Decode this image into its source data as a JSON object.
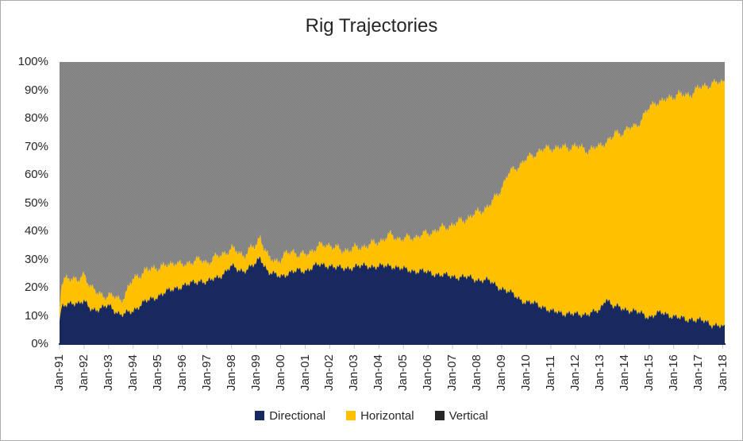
{
  "chart": {
    "title": "Rig Trajectories",
    "y_axis_labels": [
      "100%",
      "90%",
      "80%",
      "70%",
      "60%",
      "50%",
      "40%",
      "30%",
      "20%",
      "10%",
      "0%"
    ],
    "x_axis_labels": [
      "Jan-91",
      "Jan-92",
      "Jan-93",
      "Jan-94",
      "Jan-95",
      "Jan-96",
      "Jan-97",
      "Jan-98",
      "Jan-99",
      "Jan-00",
      "Jan-01",
      "Jan-02",
      "Jan-03",
      "Jan-04",
      "Jan-05",
      "Jan-06",
      "Jan-07",
      "Jan-08",
      "Jan-09",
      "Jan-10",
      "Jan-11",
      "Jan-12",
      "Jan-13",
      "Jan-14",
      "Jan-15",
      "Jan-16",
      "Jan-17",
      "Jan-18"
    ],
    "legend": {
      "items": [
        {
          "label": "Directional",
          "swatch": "navy-solid"
        },
        {
          "label": "Horizontal",
          "swatch": "gold-solid"
        },
        {
          "label": "Vertical",
          "swatch": "gray-pattern"
        }
      ]
    },
    "colors": {
      "directional": "#17295E",
      "horizontal": "#FFC000",
      "vertical_base": "#8E8E8E",
      "vertical_alt": "#7C7C7C",
      "axis_line": "#17295E",
      "tick": "#C9C9C9",
      "text": "#262626"
    }
  },
  "chart_data": {
    "type": "area",
    "stacking": "percent",
    "title": "Rig Trajectories",
    "xlabel": "",
    "ylabel": "",
    "ylim": [
      0,
      100
    ],
    "x_unit": "decimal_year",
    "x_range": [
      "Jan-1991",
      "Feb-2018"
    ],
    "grid": false,
    "legend_position": "bottom",
    "series_order_bottom_to_top": [
      "Directional",
      "Horizontal",
      "Vertical"
    ],
    "vertical_rule": "vertical_pct = 100 - directional_pct - horizontal_pct",
    "columns": [
      "year_decimal",
      "directional_pct",
      "horizontal_pct"
    ],
    "points": [
      [
        1991.0,
        8,
        4
      ],
      [
        1991.08,
        13,
        8
      ],
      [
        1991.25,
        14,
        9
      ],
      [
        1991.5,
        15,
        9
      ],
      [
        1991.75,
        14,
        8
      ],
      [
        1992.0,
        15,
        9.5
      ],
      [
        1992.25,
        13,
        8
      ],
      [
        1992.5,
        12,
        6
      ],
      [
        1992.75,
        12.5,
        4.5
      ],
      [
        1993.0,
        14,
        3.5
      ],
      [
        1993.25,
        12,
        4.5
      ],
      [
        1993.5,
        10,
        5.5
      ],
      [
        1993.75,
        11,
        8
      ],
      [
        1994.0,
        12,
        11
      ],
      [
        1994.25,
        13.5,
        11
      ],
      [
        1994.5,
        15,
        11
      ],
      [
        1994.75,
        16,
        10.5
      ],
      [
        1995.0,
        17,
        10.3
      ],
      [
        1995.25,
        18,
        9.5
      ],
      [
        1995.5,
        19,
        9
      ],
      [
        1995.75,
        20,
        9.5
      ],
      [
        1996.0,
        20.5,
        7
      ],
      [
        1996.25,
        21,
        7.5
      ],
      [
        1996.5,
        22,
        8
      ],
      [
        1996.75,
        22.5,
        7
      ],
      [
        1997.0,
        21.7,
        7
      ],
      [
        1997.25,
        23,
        7.5
      ],
      [
        1997.5,
        24,
        7
      ],
      [
        1997.75,
        25.5,
        7
      ],
      [
        1998.0,
        27.5,
        6.3
      ],
      [
        1998.25,
        26.5,
        6
      ],
      [
        1998.5,
        26,
        5.5
      ],
      [
        1998.75,
        27,
        6.5
      ],
      [
        1999.0,
        28.5,
        6.5
      ],
      [
        1999.17,
        31,
        7.5
      ],
      [
        1999.33,
        28,
        6
      ],
      [
        1999.5,
        25.5,
        5
      ],
      [
        1999.75,
        24.5,
        5
      ],
      [
        2000.0,
        24,
        6
      ],
      [
        2000.25,
        25,
        7
      ],
      [
        2000.5,
        25.5,
        7.5
      ],
      [
        2000.75,
        26,
        5.5
      ],
      [
        2001.0,
        26,
        5.5
      ],
      [
        2001.25,
        27,
        6
      ],
      [
        2001.5,
        28,
        6.4
      ],
      [
        2001.75,
        28,
        7
      ],
      [
        2002.0,
        27.9,
        7.3
      ],
      [
        2002.25,
        27,
        7
      ],
      [
        2002.5,
        26.8,
        6.2
      ],
      [
        2002.75,
        27,
        6.5
      ],
      [
        2003.0,
        27.3,
        6.5
      ],
      [
        2003.25,
        27.5,
        6.8
      ],
      [
        2003.5,
        27.9,
        7
      ],
      [
        2003.75,
        27.5,
        8
      ],
      [
        2004.0,
        27.3,
        9
      ],
      [
        2004.25,
        27.7,
        9.8
      ],
      [
        2004.5,
        27.9,
        10.7
      ],
      [
        2004.75,
        27,
        10.5
      ],
      [
        2005.0,
        26.5,
        10.7
      ],
      [
        2005.25,
        26.2,
        11.4
      ],
      [
        2005.5,
        25.9,
        12.1
      ],
      [
        2005.75,
        25.7,
        12.9
      ],
      [
        2006.0,
        25.4,
        13.8
      ],
      [
        2006.25,
        25,
        15
      ],
      [
        2006.5,
        24.5,
        16.3
      ],
      [
        2006.75,
        24.2,
        17.3
      ],
      [
        2007.0,
        24,
        18.3
      ],
      [
        2007.25,
        23.8,
        19.4
      ],
      [
        2007.5,
        23.7,
        20.5
      ],
      [
        2007.75,
        23.4,
        21.9
      ],
      [
        2008.0,
        22.8,
        23.7
      ],
      [
        2008.25,
        22.7,
        25
      ],
      [
        2008.5,
        22.3,
        26.7
      ],
      [
        2008.75,
        21,
        31
      ],
      [
        2009.0,
        19.7,
        35.8
      ],
      [
        2009.25,
        18.5,
        41.5
      ],
      [
        2009.5,
        17.5,
        44.5
      ],
      [
        2009.75,
        16,
        47.5
      ],
      [
        2010.0,
        14.6,
        50.8
      ],
      [
        2010.25,
        14.5,
        52.5
      ],
      [
        2010.5,
        14,
        54.2
      ],
      [
        2010.75,
        13,
        56
      ],
      [
        2011.0,
        11.3,
        58.3
      ],
      [
        2011.25,
        11.5,
        57.9
      ],
      [
        2011.5,
        11,
        58.6
      ],
      [
        2011.75,
        10.7,
        59.1
      ],
      [
        2012.0,
        10.4,
        59.7
      ],
      [
        2012.25,
        10.5,
        59
      ],
      [
        2012.5,
        10.8,
        57.9
      ],
      [
        2012.75,
        11.2,
        58.1
      ],
      [
        2013.0,
        11.8,
        58.3
      ],
      [
        2013.25,
        16.6,
        55.4
      ],
      [
        2013.5,
        13.5,
        59
      ],
      [
        2013.6,
        13.2,
        61.8
      ],
      [
        2013.75,
        13,
        61.5
      ],
      [
        2014.0,
        12.4,
        63.1
      ],
      [
        2014.25,
        12,
        64.5
      ],
      [
        2014.5,
        11.3,
        66.2
      ],
      [
        2014.75,
        10.5,
        70
      ],
      [
        2015.0,
        9.6,
        73.9
      ],
      [
        2015.25,
        10.5,
        75.5
      ],
      [
        2015.5,
        11,
        74.6
      ],
      [
        2015.75,
        10.5,
        76.5
      ],
      [
        2016.0,
        9.9,
        78.1
      ],
      [
        2016.25,
        9.2,
        79.3
      ],
      [
        2016.5,
        8.5,
        79.5
      ],
      [
        2016.75,
        9,
        80
      ],
      [
        2017.0,
        8.5,
        82
      ],
      [
        2017.25,
        8,
        83.5
      ],
      [
        2017.5,
        7,
        85
      ],
      [
        2017.75,
        6.8,
        85.7
      ],
      [
        2018.0,
        6.2,
        86.8
      ],
      [
        2018.08,
        6.5,
        87
      ]
    ]
  }
}
